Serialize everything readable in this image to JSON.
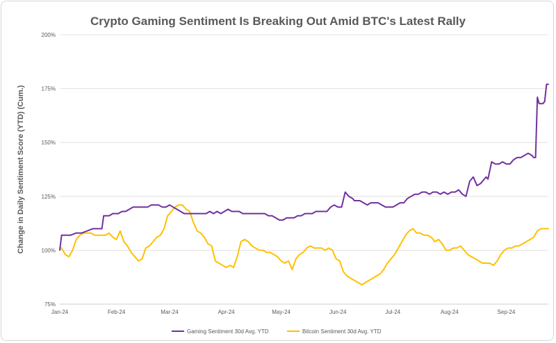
{
  "chart_data": {
    "type": "line",
    "title": "Crypto Gaming Sentiment Is Breaking Out Amid BTC's Latest Rally",
    "xlabel": "",
    "ylabel": "Change in Daily Sentiment Score (YTD) (Cum.)",
    "ylim": [
      75,
      200
    ],
    "yticks": [
      "75%",
      "100%",
      "125%",
      "150%",
      "175%",
      "200%"
    ],
    "ytick_values": [
      75,
      100,
      125,
      150,
      175,
      200
    ],
    "x_tick_labels": [
      "Jan-24",
      "Feb-24",
      "Mar-24",
      "Apr-24",
      "May-24",
      "Jun-24",
      "Jul-24",
      "Aug-24",
      "Sep-24"
    ],
    "x_tick_days": [
      0,
      31,
      60,
      91,
      121,
      152,
      182,
      213,
      244
    ],
    "x_range_days": [
      0,
      267
    ],
    "grid": "horizontal",
    "legend_position": "bottom",
    "series": [
      {
        "name": "Gaming Sentiment 30d Avg. YTD",
        "color": "#7030a0",
        "x": [
          0,
          1,
          3,
          6,
          9,
          12,
          15,
          18,
          22,
          23,
          24,
          27,
          29,
          30,
          32,
          34,
          36,
          38,
          40,
          43,
          45,
          46,
          48,
          50,
          52,
          54,
          56,
          58,
          60,
          62,
          64,
          66,
          68,
          70,
          72,
          74,
          76,
          78,
          80,
          82,
          84,
          86,
          88,
          90,
          92,
          94,
          96,
          98,
          100,
          102,
          104,
          106,
          108,
          110,
          112,
          114,
          116,
          118,
          120,
          122,
          124,
          126,
          128,
          130,
          132,
          134,
          136,
          138,
          140,
          142,
          144,
          146,
          148,
          150,
          152,
          154,
          156,
          158,
          160,
          161,
          162,
          164,
          166,
          168,
          170,
          172,
          174,
          176,
          178,
          180,
          182,
          184,
          186,
          188,
          190,
          192,
          194,
          196,
          198,
          200,
          202,
          204,
          206,
          208,
          210,
          212,
          214,
          216,
          218,
          220,
          222,
          224,
          226,
          228,
          230,
          232,
          233,
          234,
          236,
          238,
          240,
          242,
          244,
          246,
          248,
          250,
          252,
          254,
          256,
          258,
          259,
          260,
          261,
          262,
          264,
          265,
          266,
          267
        ],
        "values": [
          100,
          107,
          107,
          107,
          108,
          108,
          109,
          110,
          110,
          110,
          116,
          116,
          117,
          117,
          117,
          118,
          118,
          119,
          120,
          120,
          120,
          120,
          120,
          121,
          121,
          121,
          120,
          120,
          121,
          120,
          119,
          118,
          117,
          117,
          117,
          117,
          117,
          117,
          117,
          118,
          117,
          118,
          117,
          118,
          119,
          118,
          118,
          118,
          117,
          117,
          117,
          117,
          117,
          117,
          117,
          116,
          116,
          115,
          114,
          114,
          115,
          115,
          115,
          116,
          116,
          117,
          117,
          117,
          118,
          118,
          118,
          118,
          120,
          121,
          120,
          120,
          127,
          125,
          124,
          123,
          123,
          123,
          122,
          121,
          122,
          122,
          122,
          121,
          120,
          120,
          120,
          121,
          122,
          122,
          124,
          125,
          126,
          126,
          127,
          127,
          126,
          127,
          127,
          126,
          127,
          126,
          127,
          127,
          128,
          126,
          125,
          132,
          134,
          130,
          131,
          133,
          134,
          133,
          141,
          140,
          140,
          141,
          140,
          140,
          142,
          143,
          143,
          144,
          145,
          144,
          143,
          143,
          171,
          168,
          168,
          169,
          177,
          177
        ]
      },
      {
        "name": "Bitcoin Sentiment 30d Avg. YTD",
        "color": "#ffc000",
        "x": [
          0,
          1,
          3,
          5,
          7,
          9,
          11,
          13,
          15,
          17,
          19,
          21,
          23,
          25,
          27,
          29,
          31,
          33,
          35,
          37,
          39,
          41,
          43,
          45,
          47,
          49,
          51,
          53,
          55,
          57,
          59,
          61,
          63,
          65,
          67,
          69,
          71,
          73,
          75,
          77,
          79,
          81,
          83,
          85,
          87,
          89,
          91,
          93,
          95,
          97,
          99,
          101,
          103,
          105,
          107,
          109,
          111,
          113,
          115,
          117,
          119,
          121,
          123,
          125,
          127,
          129,
          131,
          133,
          135,
          137,
          139,
          141,
          143,
          145,
          147,
          149,
          151,
          153,
          155,
          157,
          159,
          161,
          163,
          165,
          167,
          169,
          171,
          173,
          175,
          177,
          179,
          181,
          183,
          185,
          187,
          189,
          191,
          193,
          195,
          197,
          199,
          201,
          203,
          205,
          207,
          209,
          211,
          213,
          215,
          217,
          219,
          221,
          223,
          225,
          227,
          229,
          231,
          233,
          235,
          237,
          239,
          241,
          243,
          245,
          247,
          249,
          251,
          253,
          255,
          257,
          259,
          261,
          263,
          265,
          267
        ],
        "values": [
          101,
          101,
          98,
          97,
          100,
          105,
          107,
          108,
          108,
          108,
          107,
          107,
          107,
          107,
          108,
          106,
          105,
          109,
          104,
          102,
          99,
          97,
          95,
          96,
          101,
          102,
          104,
          106,
          107,
          110,
          116,
          118,
          120,
          121,
          121,
          119,
          118,
          113,
          109,
          108,
          106,
          103,
          102,
          95,
          94,
          93,
          92,
          93,
          92,
          97,
          104,
          105,
          104,
          102,
          101,
          100,
          100,
          99,
          99,
          98,
          97,
          95,
          94,
          95,
          91,
          96,
          98,
          99,
          101,
          102,
          101,
          101,
          101,
          100,
          101,
          100,
          96,
          95,
          90,
          88,
          87,
          86,
          85,
          84,
          85,
          86,
          87,
          88,
          89,
          91,
          94,
          96,
          98,
          101,
          104,
          107,
          109,
          110,
          108,
          108,
          107,
          107,
          106,
          104,
          105,
          103,
          100,
          100,
          101,
          101,
          102,
          100,
          98,
          97,
          96,
          95,
          94,
          94,
          94,
          93,
          95,
          98,
          100,
          101,
          101,
          102,
          102,
          103,
          104,
          105,
          106,
          109,
          110,
          110,
          110
        ]
      }
    ]
  }
}
